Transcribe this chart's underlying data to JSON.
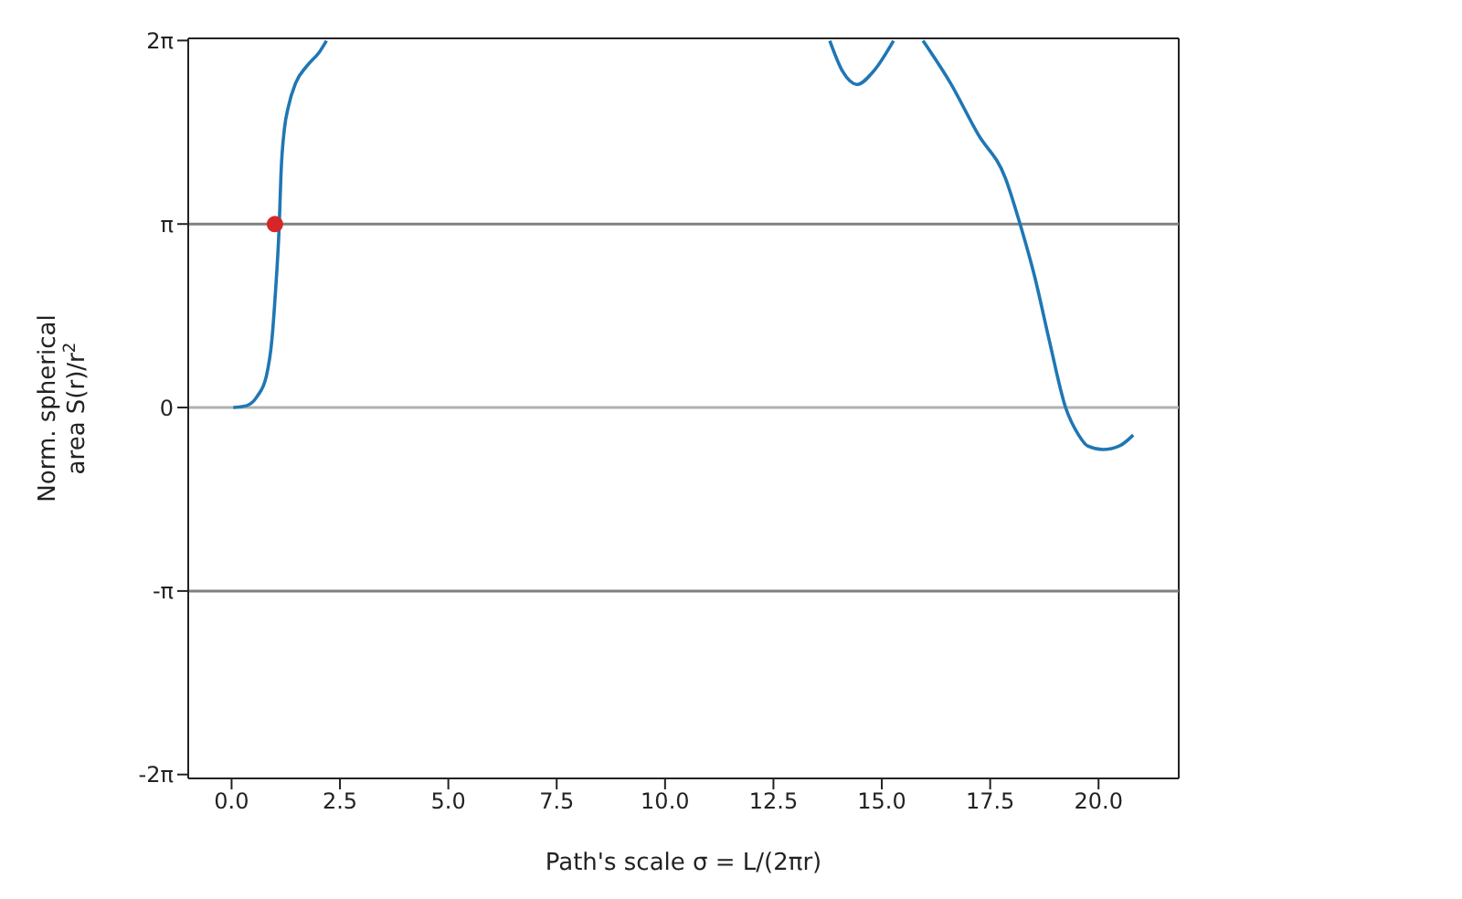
{
  "chart_data": {
    "type": "line",
    "xlabel": "Path's scale σ = L/(2πr)",
    "ylabel": "Norm. spherical\narea S(r)/r$^{2}$",
    "xlim": [
      -1.0,
      21.85
    ],
    "xticks": [
      {
        "value": 0,
        "label": "0.0"
      },
      {
        "value": 2.5,
        "label": "2.5"
      },
      {
        "value": 5,
        "label": "5.0"
      },
      {
        "value": 7.5,
        "label": "7.5"
      },
      {
        "value": 10,
        "label": "10.0"
      },
      {
        "value": 12.5,
        "label": "12.5"
      },
      {
        "value": 15,
        "label": "15.0"
      },
      {
        "value": 17.5,
        "label": "17.5"
      },
      {
        "value": 20,
        "label": "20.0"
      }
    ],
    "ylim": [
      -6.35,
      6.32
    ],
    "yticks": [
      {
        "value": -6.2832,
        "label": "-2π"
      },
      {
        "value": -3.1416,
        "label": "-π"
      },
      {
        "value": 0,
        "label": "0"
      },
      {
        "value": 3.1416,
        "label": "π"
      },
      {
        "value": 6.2832,
        "label": "2π"
      }
    ],
    "series": [
      {
        "color": "#1f77b4",
        "marker": "none",
        "x": [
          0.04,
          0.34,
          0.59,
          0.8,
          0.93,
          1.01,
          1.1,
          1.14,
          1.22,
          1.31,
          1.48,
          1.73,
          2.03,
          2.19,
          8,
          13.8,
          14.1,
          14.43,
          14.8,
          15.27,
          15.6,
          15.95,
          16.58,
          17.22,
          17.85,
          18.19,
          18.52,
          18.86,
          19.24,
          19.54,
          19.75,
          20.1,
          20.5,
          20.8
        ],
        "values": [
          0,
          0.03,
          0.19,
          0.53,
          1.16,
          1.95,
          3.14,
          4.0,
          4.78,
          5.15,
          5.56,
          5.84,
          6.09,
          6.28,
          null,
          6.28,
          5.75,
          5.53,
          5.75,
          6.28,
          null,
          6.28,
          5.56,
          4.68,
          3.93,
          3.14,
          2.26,
          1.16,
          0,
          -0.47,
          -0.66,
          -0.72,
          -0.65,
          -0.47
        ]
      },
      {
        "type": "scatter",
        "color": "#d62728",
        "marker": "circle",
        "x": [
          1.0
        ],
        "values": [
          3.14
        ]
      }
    ],
    "line_style": "solid",
    "grid": false,
    "legend": false,
    "ref_lines": [
      {
        "axis": "y",
        "value": 0,
        "color": "#b0b0b0"
      },
      {
        "axis": "y",
        "value": 3.1416,
        "color": "#808080"
      },
      {
        "axis": "y",
        "value": -3.1416,
        "color": "#808080"
      }
    ]
  }
}
